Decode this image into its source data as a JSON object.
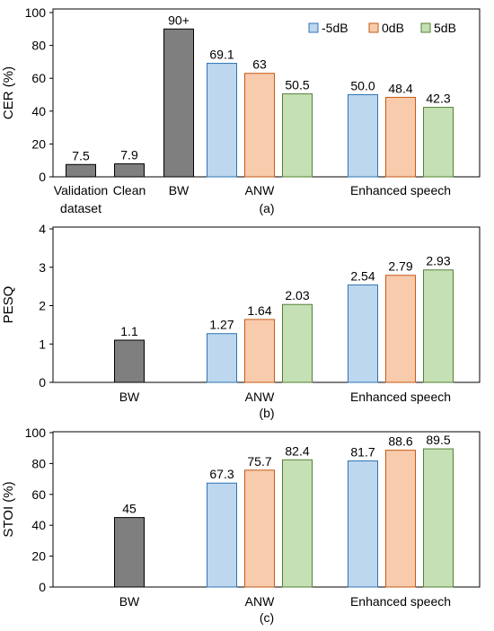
{
  "colors": {
    "BW": "#7f7f7f",
    "-5dB": "#bdd7ee",
    "0dB": "#f8cbad",
    "5dB": "#c5e0b4",
    "border_BW": "#000000",
    "border_-5dB": "#2e75b6",
    "border_0dB": "#c55a11",
    "border_5dB": "#538135"
  },
  "legend": [
    "-5dB",
    "0dB",
    "5dB"
  ],
  "chart_data": [
    {
      "type": "bar",
      "caption": "(a)",
      "ylabel": "CER (%)",
      "ylim": [
        0,
        100
      ],
      "yticks": [
        "0",
        "20",
        "40",
        "60",
        "80",
        "100"
      ],
      "grid": false,
      "legend_position": "top-right",
      "groups": [
        {
          "label": [
            "Validation",
            "dataset"
          ],
          "bars": [
            {
              "series": "BW",
              "value": 7.5,
              "label": "7.5"
            }
          ]
        },
        {
          "label": [
            "Clean"
          ],
          "bars": [
            {
              "series": "BW",
              "value": 7.9,
              "label": "7.9"
            }
          ]
        },
        {
          "label": [
            "BW"
          ],
          "bars": [
            {
              "series": "BW",
              "value": 90,
              "label": "90+"
            }
          ]
        },
        {
          "label": [
            "ANW"
          ],
          "bars": [
            {
              "series": "-5dB",
              "value": 69.1,
              "label": "69.1"
            },
            {
              "series": "0dB",
              "value": 63,
              "label": "63"
            },
            {
              "series": "5dB",
              "value": 50.5,
              "label": "50.5"
            }
          ]
        },
        {
          "label": [
            "Enhanced speech"
          ],
          "bars": [
            {
              "series": "-5dB",
              "value": 50.0,
              "label": "50.0"
            },
            {
              "series": "0dB",
              "value": 48.4,
              "label": "48.4"
            },
            {
              "series": "5dB",
              "value": 42.3,
              "label": "42.3"
            }
          ]
        }
      ]
    },
    {
      "type": "bar",
      "caption": "(b)",
      "ylabel": "PESQ",
      "ylim": [
        0,
        4
      ],
      "yticks": [
        "0",
        "1",
        "2",
        "3",
        "4"
      ],
      "grid": false,
      "groups": [
        {
          "label": [
            "BW"
          ],
          "bars": [
            {
              "series": "BW",
              "value": 1.1,
              "label": "1.1"
            }
          ]
        },
        {
          "label": [
            "ANW"
          ],
          "bars": [
            {
              "series": "-5dB",
              "value": 1.27,
              "label": "1.27"
            },
            {
              "series": "0dB",
              "value": 1.64,
              "label": "1.64"
            },
            {
              "series": "5dB",
              "value": 2.03,
              "label": "2.03"
            }
          ]
        },
        {
          "label": [
            "Enhanced speech"
          ],
          "bars": [
            {
              "series": "-5dB",
              "value": 2.54,
              "label": "2.54"
            },
            {
              "series": "0dB",
              "value": 2.79,
              "label": "2.79"
            },
            {
              "series": "5dB",
              "value": 2.93,
              "label": "2.93"
            }
          ]
        }
      ]
    },
    {
      "type": "bar",
      "caption": "(c)",
      "ylabel": "STOI (%)",
      "ylim": [
        0,
        100
      ],
      "yticks": [
        "0",
        "20",
        "40",
        "60",
        "80",
        "100"
      ],
      "grid": false,
      "groups": [
        {
          "label": [
            "BW"
          ],
          "bars": [
            {
              "series": "BW",
              "value": 45,
              "label": "45"
            }
          ]
        },
        {
          "label": [
            "ANW"
          ],
          "bars": [
            {
              "series": "-5dB",
              "value": 67.3,
              "label": "67.3"
            },
            {
              "series": "0dB",
              "value": 75.7,
              "label": "75.7"
            },
            {
              "series": "5dB",
              "value": 82.4,
              "label": "82.4"
            }
          ]
        },
        {
          "label": [
            "Enhanced speech"
          ],
          "bars": [
            {
              "series": "-5dB",
              "value": 81.7,
              "label": "81.7"
            },
            {
              "series": "0dB",
              "value": 88.6,
              "label": "88.6"
            },
            {
              "series": "5dB",
              "value": 89.5,
              "label": "89.5"
            }
          ]
        }
      ]
    }
  ]
}
